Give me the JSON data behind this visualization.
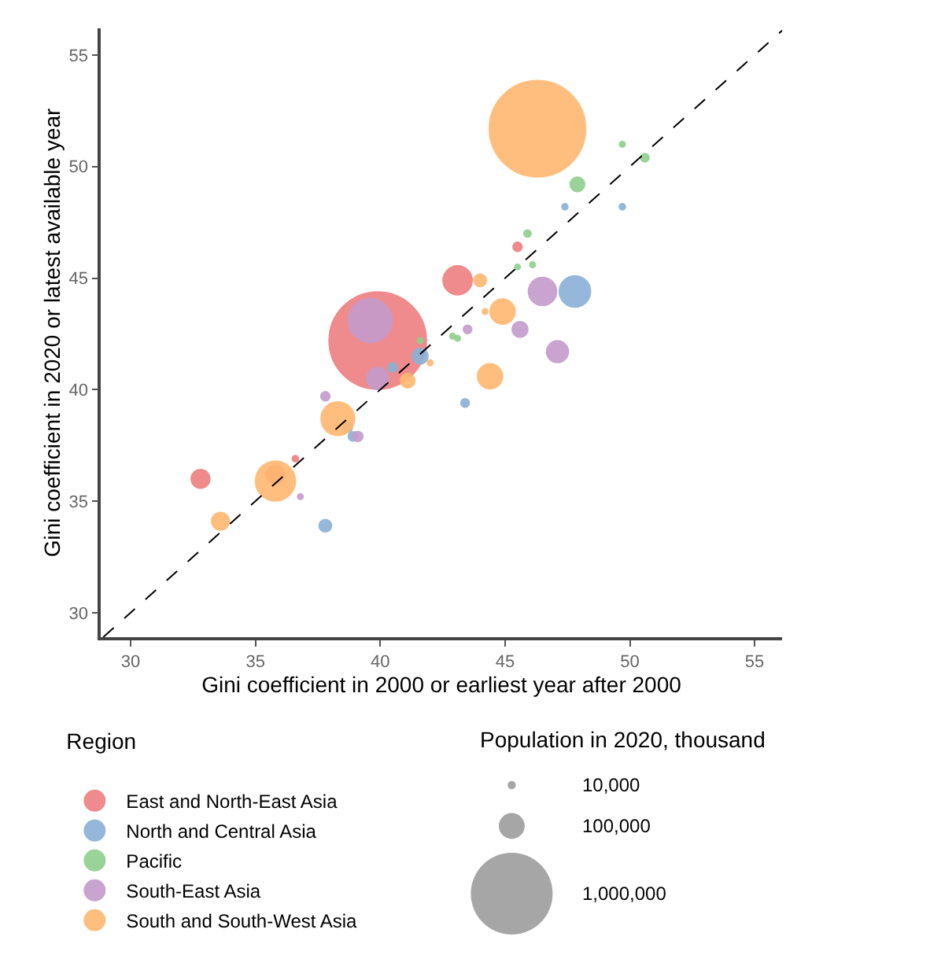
{
  "chart_data": {
    "type": "bubble",
    "xlabel": "Gini coefficient in 2000 or earliest year after 2000",
    "ylabel": "Gini coefficient in 2020 or latest available year",
    "legend_title": "Region",
    "annotations": [
      "Population in 2020, thousand"
    ],
    "xlim": [
      28.8,
      56.1
    ],
    "ylim": [
      28.9,
      56.2
    ],
    "xticks": [
      30,
      35,
      40,
      45,
      50,
      55
    ],
    "yticks": [
      30,
      35,
      40,
      45,
      50,
      55
    ],
    "grid": false,
    "legend": "bottom left",
    "size_legend": [
      {
        "value": 10000,
        "label": "10,000"
      },
      {
        "value": 100000,
        "label": "100,000"
      },
      {
        "value": 1000000,
        "label": "1,000,000"
      }
    ],
    "marker": "circle",
    "series": [
      {
        "name": "East and North-East Asia",
        "color": "#ee7f80",
        "x": [
          39.9,
          43.1,
          45.5,
          35.8,
          32.8,
          36.6
        ],
        "values": [
          42.2,
          44.9,
          46.4,
          36.2,
          36.0,
          36.9
        ],
        "sizes": [
          1420000,
          128000,
          13000,
          53000,
          53000,
          6000
        ]
      },
      {
        "name": "North and Central Asia",
        "color": "#8ab1d6",
        "x": [
          47.4,
          49.7,
          47.8,
          43.4,
          41.6,
          40.5,
          38.7,
          38.9,
          37.8
        ],
        "values": [
          48.2,
          48.2,
          44.4,
          39.4,
          41.5,
          41.0,
          38.3,
          37.9,
          33.9
        ],
        "sizes": [
          6000,
          6000,
          148000,
          11000,
          37000,
          13000,
          13000,
          13000,
          24000
        ]
      },
      {
        "name": "Pacific",
        "color": "#8fcf8c",
        "x": [
          49.7,
          50.6,
          47.9,
          45.9,
          45.5,
          46.1,
          42.9,
          43.1,
          41.6
        ],
        "values": [
          51.0,
          50.4,
          49.2,
          47.0,
          45.5,
          45.6,
          42.4,
          42.3,
          42.2
        ],
        "sizes": [
          5000,
          11000,
          32000,
          8000,
          5000,
          5000,
          5000,
          5000,
          5000
        ]
      },
      {
        "name": "South-East Asia",
        "color": "#c49bcc",
        "x": [
          39.6,
          46.5,
          45.6,
          43.5,
          47.1,
          39.9,
          37.8,
          39.1,
          36.8
        ],
        "values": [
          43.1,
          44.4,
          42.7,
          42.7,
          41.7,
          40.5,
          39.7,
          37.9,
          35.2
        ],
        "sizes": [
          290000,
          120000,
          37000,
          11000,
          72000,
          72000,
          13000,
          16000,
          5000
        ]
      },
      {
        "name": "South and South-West Asia",
        "color": "#ffb870",
        "x": [
          46.3,
          44.0,
          44.9,
          44.2,
          44.4,
          42.0,
          41.1,
          38.3,
          35.8,
          33.6
        ],
        "values": [
          51.7,
          44.9,
          43.5,
          43.5,
          40.6,
          41.2,
          40.4,
          38.7,
          35.9,
          34.1
        ],
        "sizes": [
          1390000,
          24000,
          95000,
          5000,
          95000,
          5000,
          32000,
          170000,
          240000,
          48000
        ]
      },
      {
        "type": "line",
        "color": "#000000",
        "line_style": "dashed",
        "marker": "none",
        "x": [
          28.9,
          56.1
        ],
        "values": [
          28.9,
          56.1
        ]
      }
    ]
  }
}
